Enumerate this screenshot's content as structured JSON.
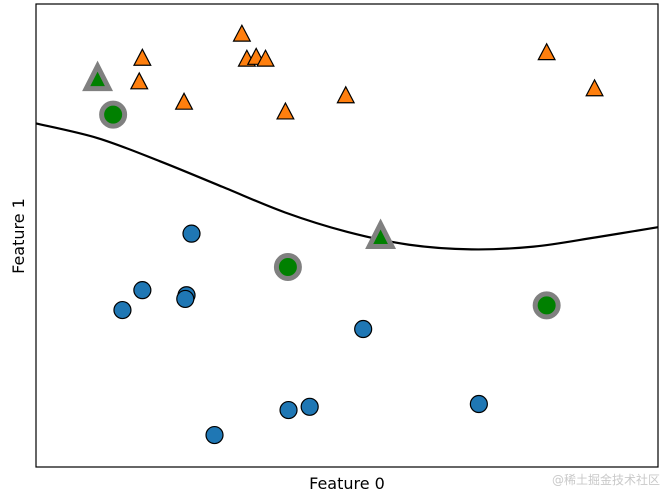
{
  "chart_data": {
    "type": "scatter",
    "title": "",
    "xlabel": "Feature 0",
    "ylabel": "Feature 1",
    "xlim": [
      0,
      100
    ],
    "ylim": [
      0,
      100
    ],
    "ticks": "none",
    "grid": false,
    "legend": "none",
    "colors": {
      "class0": "#1f77b4",
      "class1": "#ff7f0e",
      "support_vector_fill": "#008000",
      "support_vector_ring": "#808080",
      "boundary": "#000000"
    },
    "class0_points": [
      {
        "x": 25.0,
        "y": 50.4
      },
      {
        "x": 17.1,
        "y": 38.2
      },
      {
        "x": 13.9,
        "y": 33.9
      },
      {
        "x": 24.2,
        "y": 37.1
      },
      {
        "x": 24.0,
        "y": 36.3
      },
      {
        "x": 52.6,
        "y": 29.8
      },
      {
        "x": 28.7,
        "y": 6.9
      },
      {
        "x": 40.6,
        "y": 12.3
      },
      {
        "x": 44.0,
        "y": 13.0
      },
      {
        "x": 71.2,
        "y": 13.6
      }
    ],
    "class1_points": [
      {
        "x": 33.1,
        "y": 93.3
      },
      {
        "x": 17.1,
        "y": 88.1
      },
      {
        "x": 16.6,
        "y": 83.0
      },
      {
        "x": 33.9,
        "y": 87.9
      },
      {
        "x": 35.4,
        "y": 88.3
      },
      {
        "x": 36.9,
        "y": 87.9
      },
      {
        "x": 23.8,
        "y": 78.6
      },
      {
        "x": 40.1,
        "y": 76.5
      },
      {
        "x": 49.8,
        "y": 80.0
      },
      {
        "x": 82.1,
        "y": 89.3
      },
      {
        "x": 89.8,
        "y": 81.5
      }
    ],
    "support_vectors": [
      {
        "x": 12.4,
        "y": 76.1,
        "class": 0
      },
      {
        "x": 40.5,
        "y": 43.2,
        "class": 0
      },
      {
        "x": 82.1,
        "y": 34.9,
        "class": 0
      },
      {
        "x": 9.9,
        "y": 83.6,
        "class": 1
      },
      {
        "x": 55.4,
        "y": 49.5,
        "class": 1
      }
    ],
    "decision_boundary": [
      {
        "x": 0,
        "y": 74.2
      },
      {
        "x": 10,
        "y": 71.0
      },
      {
        "x": 20,
        "y": 66.0
      },
      {
        "x": 30,
        "y": 60.5
      },
      {
        "x": 40,
        "y": 55.0
      },
      {
        "x": 50,
        "y": 50.8
      },
      {
        "x": 60,
        "y": 48.0
      },
      {
        "x": 70,
        "y": 47.0
      },
      {
        "x": 80,
        "y": 47.6
      },
      {
        "x": 90,
        "y": 49.6
      },
      {
        "x": 100,
        "y": 51.8
      }
    ]
  },
  "watermark": "@稀土掘金技术社区"
}
